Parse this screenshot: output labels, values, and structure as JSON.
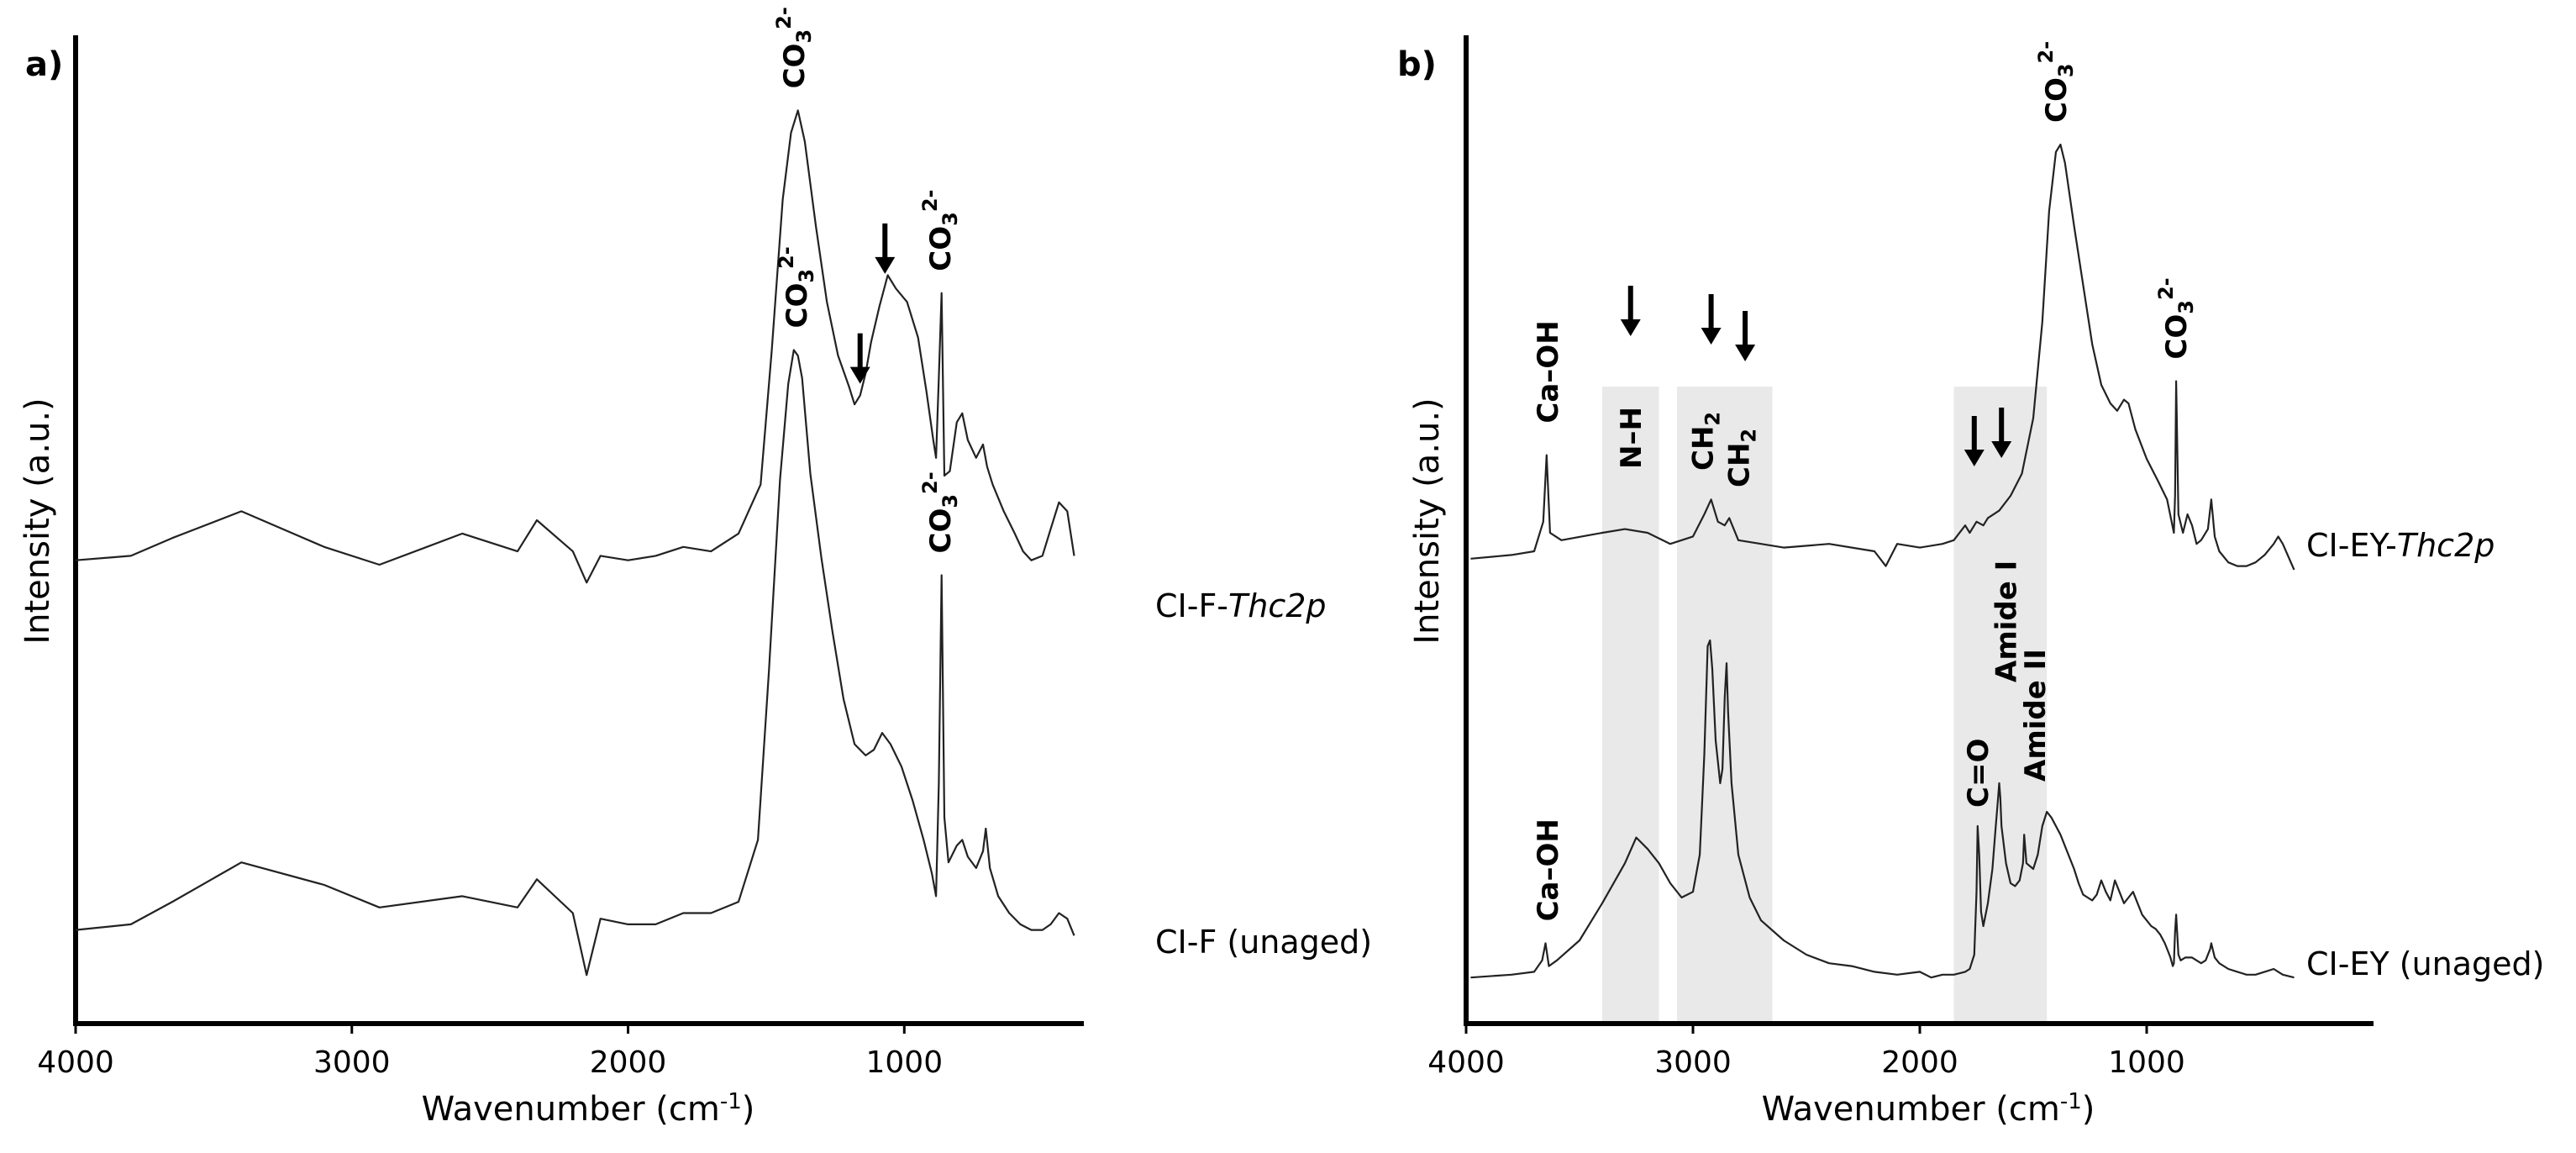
{
  "chart_data": [
    {
      "type": "line",
      "panel_label": "a)",
      "xlabel_main": "Wavenumber (cm",
      "xlabel_sup": "-1",
      "xlabel_end": ")",
      "ylabel": "Intensity (a.u.)",
      "xlim": [
        4000,
        350
      ],
      "x_reversed": true,
      "x_ticks": [
        "4000",
        "3000",
        "2000",
        "1000"
      ],
      "x_tick_values": [
        4000,
        3000,
        2000,
        1000
      ],
      "ylim": [
        0,
        1.5
      ],
      "series": [
        {
          "name_main": "CI-F-",
          "name_italic": "Thc2p",
          "x": [
            4000,
            3800,
            3650,
            3400,
            3100,
            2900,
            2600,
            2400,
            2330,
            2200,
            2150,
            2100,
            2000,
            1900,
            1800,
            1700,
            1600,
            1520,
            1480,
            1440,
            1410,
            1385,
            1360,
            1320,
            1280,
            1240,
            1200,
            1180,
            1160,
            1140,
            1120,
            1090,
            1060,
            1030,
            990,
            950,
            920,
            895,
            885,
            875,
            865,
            855,
            835,
            810,
            790,
            770,
            740,
            715,
            700,
            680,
            640,
            600,
            570,
            540,
            500,
            470,
            440,
            410,
            385
          ],
          "values": [
            0.11,
            0.12,
            0.16,
            0.22,
            0.14,
            0.1,
            0.17,
            0.13,
            0.2,
            0.13,
            0.06,
            0.12,
            0.11,
            0.12,
            0.14,
            0.13,
            0.17,
            0.28,
            0.58,
            0.92,
            1.07,
            1.12,
            1.05,
            0.86,
            0.69,
            0.57,
            0.5,
            0.46,
            0.48,
            0.53,
            0.6,
            0.68,
            0.75,
            0.72,
            0.69,
            0.61,
            0.49,
            0.38,
            0.34,
            0.52,
            0.71,
            0.3,
            0.31,
            0.42,
            0.44,
            0.38,
            0.34,
            0.37,
            0.32,
            0.28,
            0.22,
            0.17,
            0.13,
            0.11,
            0.12,
            0.18,
            0.24,
            0.22,
            0.12
          ]
        },
        {
          "name_main": "CI-F (unaged)",
          "name_italic": "",
          "x": [
            4000,
            3800,
            3650,
            3400,
            3100,
            2900,
            2600,
            2400,
            2330,
            2200,
            2150,
            2100,
            2000,
            1900,
            1800,
            1700,
            1600,
            1530,
            1490,
            1450,
            1420,
            1400,
            1385,
            1370,
            1340,
            1300,
            1260,
            1220,
            1180,
            1140,
            1110,
            1080,
            1050,
            1010,
            970,
            930,
            900,
            885,
            875,
            865,
            855,
            840,
            810,
            790,
            770,
            740,
            715,
            705,
            690,
            660,
            620,
            580,
            540,
            500,
            470,
            440,
            410,
            385
          ],
          "values": [
            0.02,
            0.03,
            0.07,
            0.14,
            0.1,
            0.06,
            0.08,
            0.06,
            0.11,
            0.05,
            -0.06,
            0.04,
            0.03,
            0.03,
            0.05,
            0.05,
            0.07,
            0.18,
            0.48,
            0.82,
            0.99,
            1.05,
            1.04,
            1.0,
            0.83,
            0.68,
            0.55,
            0.43,
            0.35,
            0.33,
            0.34,
            0.37,
            0.35,
            0.31,
            0.25,
            0.18,
            0.12,
            0.08,
            0.28,
            0.65,
            0.22,
            0.14,
            0.17,
            0.18,
            0.15,
            0.13,
            0.16,
            0.2,
            0.13,
            0.08,
            0.05,
            0.03,
            0.02,
            0.02,
            0.03,
            0.05,
            0.04,
            0.01
          ]
        }
      ],
      "annotations": [
        {
          "main": "CO",
          "sub": "3",
          "sup": "2-",
          "at_x": 1400
        },
        {
          "main": "CO",
          "sub": "3",
          "sup": "2-",
          "at_x": 870
        },
        {
          "main": "CO",
          "sub": "3",
          "sup": "2-",
          "at_x": 1390
        },
        {
          "main": "CO",
          "sub": "3",
          "sup": "2-",
          "at_x": 870
        }
      ],
      "arrows_at_x": [
        1160,
        1070
      ]
    },
    {
      "type": "line",
      "panel_label": "b)",
      "xlabel_main": "Wavenumber (cm",
      "xlabel_sup": "-1",
      "xlabel_end": ")",
      "ylabel": "Intensity (a.u.)",
      "xlim": [
        4000,
        0
      ],
      "x_reversed": true,
      "x_ticks": [
        "4000",
        "3000",
        "2000",
        "1000"
      ],
      "x_tick_values": [
        4000,
        3000,
        2000,
        1000
      ],
      "ylim": [
        0,
        1.5
      ],
      "shaded_regions": [
        [
          3400,
          3150
        ],
        [
          3070,
          2650
        ],
        [
          1850,
          1440
        ]
      ],
      "series": [
        {
          "name_main": "CI-EY-",
          "name_italic": "Thc2p",
          "x": [
            3980,
            3800,
            3700,
            3660,
            3645,
            3630,
            3580,
            3400,
            3300,
            3200,
            3100,
            3000,
            2950,
            2920,
            2890,
            2860,
            2840,
            2800,
            2600,
            2400,
            2200,
            2150,
            2100,
            2000,
            1900,
            1850,
            1800,
            1780,
            1750,
            1720,
            1700,
            1650,
            1600,
            1550,
            1500,
            1460,
            1430,
            1400,
            1380,
            1360,
            1320,
            1280,
            1240,
            1200,
            1160,
            1130,
            1100,
            1080,
            1050,
            1000,
            950,
            910,
            890,
            880,
            875,
            870,
            860,
            840,
            820,
            800,
            780,
            760,
            730,
            715,
            700,
            680,
            640,
            600,
            560,
            520,
            480,
            440,
            420,
            400,
            350
          ],
          "values": [
            0.08,
            0.09,
            0.1,
            0.18,
            0.36,
            0.15,
            0.13,
            0.15,
            0.16,
            0.15,
            0.12,
            0.14,
            0.2,
            0.24,
            0.18,
            0.17,
            0.19,
            0.13,
            0.11,
            0.12,
            0.1,
            0.06,
            0.12,
            0.11,
            0.12,
            0.13,
            0.17,
            0.15,
            0.18,
            0.17,
            0.19,
            0.21,
            0.25,
            0.31,
            0.46,
            0.72,
            1.02,
            1.18,
            1.2,
            1.15,
            0.98,
            0.82,
            0.66,
            0.55,
            0.5,
            0.48,
            0.51,
            0.5,
            0.43,
            0.35,
            0.29,
            0.24,
            0.18,
            0.15,
            0.25,
            0.56,
            0.2,
            0.15,
            0.2,
            0.17,
            0.12,
            0.13,
            0.16,
            0.24,
            0.14,
            0.1,
            0.07,
            0.06,
            0.06,
            0.07,
            0.09,
            0.12,
            0.14,
            0.12,
            0.05
          ]
        },
        {
          "name_main": "CI-EY (unaged)",
          "name_italic": "",
          "x": [
            3980,
            3800,
            3700,
            3665,
            3650,
            3635,
            3600,
            3500,
            3400,
            3300,
            3250,
            3200,
            3150,
            3100,
            3050,
            3000,
            2970,
            2950,
            2935,
            2925,
            2915,
            2900,
            2880,
            2870,
            2860,
            2852,
            2845,
            2830,
            2800,
            2750,
            2700,
            2600,
            2500,
            2400,
            2300,
            2200,
            2100,
            2000,
            1950,
            1900,
            1850,
            1800,
            1780,
            1760,
            1750,
            1745,
            1738,
            1730,
            1720,
            1700,
            1680,
            1665,
            1655,
            1650,
            1645,
            1640,
            1620,
            1600,
            1580,
            1560,
            1545,
            1540,
            1530,
            1500,
            1480,
            1460,
            1440,
            1420,
            1400,
            1380,
            1350,
            1320,
            1300,
            1280,
            1260,
            1240,
            1220,
            1200,
            1180,
            1160,
            1140,
            1120,
            1100,
            1080,
            1060,
            1040,
            1020,
            1000,
            980,
            960,
            940,
            920,
            905,
            895,
            885,
            880,
            875,
            870,
            860,
            850,
            830,
            800,
            780,
            760,
            740,
            720,
            715,
            700,
            680,
            640,
            600,
            560,
            520,
            480,
            440,
            420,
            400,
            350
          ],
          "values": [
            0.02,
            0.03,
            0.04,
            0.08,
            0.14,
            0.06,
            0.08,
            0.15,
            0.28,
            0.42,
            0.51,
            0.47,
            0.42,
            0.35,
            0.3,
            0.32,
            0.45,
            0.8,
            1.18,
            1.2,
            1.1,
            0.85,
            0.7,
            0.75,
            1.0,
            1.12,
            0.95,
            0.7,
            0.45,
            0.3,
            0.22,
            0.15,
            0.1,
            0.07,
            0.06,
            0.04,
            0.03,
            0.04,
            0.02,
            0.03,
            0.03,
            0.04,
            0.05,
            0.1,
            0.32,
            0.55,
            0.45,
            0.25,
            0.2,
            0.28,
            0.4,
            0.55,
            0.65,
            0.7,
            0.65,
            0.55,
            0.42,
            0.35,
            0.34,
            0.36,
            0.42,
            0.52,
            0.42,
            0.4,
            0.45,
            0.55,
            0.6,
            0.58,
            0.55,
            0.52,
            0.46,
            0.4,
            0.35,
            0.31,
            0.3,
            0.29,
            0.31,
            0.36,
            0.32,
            0.29,
            0.36,
            0.32,
            0.28,
            0.3,
            0.32,
            0.28,
            0.24,
            0.22,
            0.2,
            0.19,
            0.17,
            0.14,
            0.11,
            0.09,
            0.06,
            0.07,
            0.18,
            0.24,
            0.1,
            0.08,
            0.09,
            0.09,
            0.08,
            0.07,
            0.08,
            0.12,
            0.14,
            0.09,
            0.07,
            0.05,
            0.04,
            0.03,
            0.03,
            0.04,
            0.05,
            0.04,
            0.03,
            0.02
          ]
        }
      ],
      "annotations": [
        {
          "text": "Ca–OH",
          "at_x": 3640
        },
        {
          "text": "N–H",
          "at_x": 3275
        },
        {
          "main": "CH",
          "sub": "2",
          "at_x": 2920
        },
        {
          "main": "CH",
          "sub": "2",
          "at_x": 2850
        },
        {
          "main": "CO",
          "sub": "3",
          "sup": "2-",
          "at_x": 1400
        },
        {
          "main": "CO",
          "sub": "3",
          "sup": "2-",
          "at_x": 870
        },
        {
          "text": "Ca–OH",
          "at_x": 3640
        },
        {
          "text": "C=O",
          "at_x": 1745
        },
        {
          "text": "Amide I",
          "at_x": 1650
        },
        {
          "text": "Amide II",
          "at_x": 1545
        }
      ],
      "arrows_at_x": [
        3275,
        2920,
        2770,
        1760,
        1640
      ]
    }
  ]
}
